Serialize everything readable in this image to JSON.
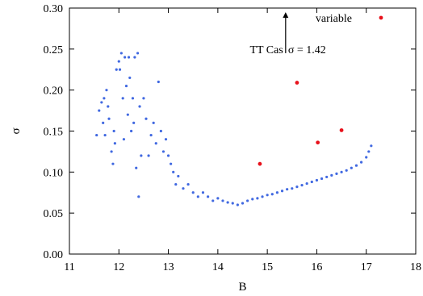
{
  "chart_data": {
    "type": "scatter",
    "title": "",
    "xlabel": "B",
    "ylabel": "σ",
    "xlim": [
      11,
      18
    ],
    "ylim": [
      0.0,
      0.3
    ],
    "xticks": [
      11,
      12,
      13,
      14,
      15,
      16,
      17,
      18
    ],
    "yticks": [
      0.0,
      0.05,
      0.1,
      0.15,
      0.2,
      0.25,
      0.3
    ],
    "xtick_labels": [
      "11",
      "12",
      "13",
      "14",
      "15",
      "16",
      "17",
      "18"
    ],
    "ytick_labels": [
      "0.00",
      "0.05",
      "0.10",
      "0.15",
      "0.20",
      "0.25",
      "0.30"
    ],
    "grid": false,
    "legend_position": "top-right",
    "series": [
      {
        "color": "#4169e1",
        "points": [
          [
            11.55,
            0.145
          ],
          [
            11.6,
            0.175
          ],
          [
            11.65,
            0.185
          ],
          [
            11.68,
            0.16
          ],
          [
            11.7,
            0.19
          ],
          [
            11.72,
            0.145
          ],
          [
            11.75,
            0.2
          ],
          [
            11.78,
            0.18
          ],
          [
            11.8,
            0.165
          ],
          [
            11.85,
            0.125
          ],
          [
            11.88,
            0.11
          ],
          [
            11.9,
            0.15
          ],
          [
            11.92,
            0.135
          ],
          [
            11.95,
            0.225
          ],
          [
            12.0,
            0.235
          ],
          [
            12.02,
            0.225
          ],
          [
            12.05,
            0.245
          ],
          [
            12.08,
            0.19
          ],
          [
            12.1,
            0.14
          ],
          [
            12.12,
            0.24
          ],
          [
            12.15,
            0.205
          ],
          [
            12.18,
            0.17
          ],
          [
            12.2,
            0.24
          ],
          [
            12.22,
            0.215
          ],
          [
            12.25,
            0.15
          ],
          [
            12.28,
            0.19
          ],
          [
            12.3,
            0.16
          ],
          [
            12.32,
            0.24
          ],
          [
            12.35,
            0.105
          ],
          [
            12.38,
            0.245
          ],
          [
            12.4,
            0.07
          ],
          [
            12.42,
            0.18
          ],
          [
            12.45,
            0.12
          ],
          [
            12.5,
            0.19
          ],
          [
            12.55,
            0.165
          ],
          [
            12.6,
            0.12
          ],
          [
            12.65,
            0.145
          ],
          [
            12.7,
            0.16
          ],
          [
            12.75,
            0.135
          ],
          [
            12.8,
            0.21
          ],
          [
            12.85,
            0.15
          ],
          [
            12.9,
            0.125
          ],
          [
            12.95,
            0.14
          ],
          [
            13.0,
            0.12
          ],
          [
            13.05,
            0.11
          ],
          [
            13.1,
            0.1
          ],
          [
            13.15,
            0.085
          ],
          [
            13.2,
            0.095
          ],
          [
            13.3,
            0.08
          ],
          [
            13.4,
            0.085
          ],
          [
            13.5,
            0.075
          ],
          [
            13.6,
            0.07
          ],
          [
            13.7,
            0.075
          ],
          [
            13.8,
            0.07
          ],
          [
            13.9,
            0.065
          ],
          [
            14.0,
            0.068
          ],
          [
            14.1,
            0.065
          ],
          [
            14.2,
            0.063
          ],
          [
            14.3,
            0.062
          ],
          [
            14.4,
            0.06
          ],
          [
            14.5,
            0.062
          ],
          [
            14.6,
            0.065
          ],
          [
            14.7,
            0.067
          ],
          [
            14.8,
            0.068
          ],
          [
            14.9,
            0.07
          ],
          [
            15.0,
            0.072
          ],
          [
            15.1,
            0.073
          ],
          [
            15.2,
            0.075
          ],
          [
            15.3,
            0.077
          ],
          [
            15.4,
            0.079
          ],
          [
            15.5,
            0.08
          ],
          [
            15.6,
            0.082
          ],
          [
            15.7,
            0.084
          ],
          [
            15.8,
            0.086
          ],
          [
            15.9,
            0.088
          ],
          [
            16.0,
            0.09
          ],
          [
            16.1,
            0.092
          ],
          [
            16.2,
            0.094
          ],
          [
            16.3,
            0.096
          ],
          [
            16.4,
            0.098
          ],
          [
            16.5,
            0.1
          ],
          [
            16.6,
            0.102
          ],
          [
            16.7,
            0.105
          ],
          [
            16.8,
            0.108
          ],
          [
            16.9,
            0.112
          ],
          [
            17.0,
            0.118
          ],
          [
            17.05,
            0.125
          ],
          [
            17.1,
            0.132
          ]
        ]
      },
      {
        "name": "variable",
        "color": "#e8121c",
        "points": [
          [
            14.85,
            0.11
          ],
          [
            15.6,
            0.209
          ],
          [
            16.02,
            0.136
          ],
          [
            16.5,
            0.151
          ]
        ]
      }
    ],
    "annotations": [
      {
        "text": "TT Cas",
        "right_text": "σ = 1.42",
        "arrow_x": 15.37,
        "arrow_from_y": 0.245,
        "arrow_to_y": 0.295
      }
    ]
  }
}
